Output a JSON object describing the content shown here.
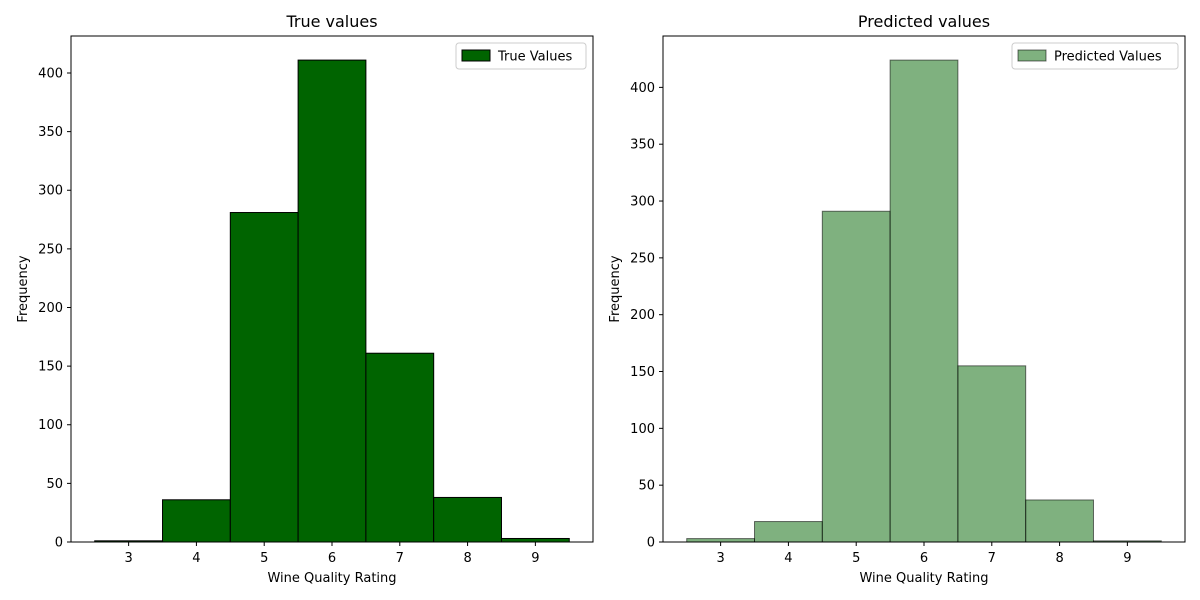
{
  "chart_data": [
    {
      "type": "bar",
      "title": "True values",
      "xlabel": "Wine Quality Rating",
      "ylabel": "Frequency",
      "categories": [
        "3",
        "4",
        "5",
        "6",
        "7",
        "8",
        "9"
      ],
      "bins": [
        [
          2.5,
          3.5
        ],
        [
          3.5,
          4.5
        ],
        [
          4.5,
          5.5
        ],
        [
          5.5,
          6.5
        ],
        [
          6.5,
          7.5
        ],
        [
          7.5,
          8.5
        ],
        [
          8.5,
          9.5
        ]
      ],
      "series": [
        {
          "name": "True Values",
          "values": [
            1,
            36,
            281,
            411,
            161,
            38,
            3
          ],
          "color": "#006400",
          "opacity": 1.0
        }
      ],
      "xticks": [
        3,
        4,
        5,
        6,
        7,
        8,
        9
      ],
      "yticks": [
        0,
        50,
        100,
        150,
        200,
        250,
        300,
        350,
        400
      ],
      "xlim": [
        2.15,
        9.85
      ],
      "ylim": [
        0,
        431.55
      ],
      "legend": "top-right",
      "grid": false
    },
    {
      "type": "bar",
      "title": "Predicted values",
      "xlabel": "Wine Quality Rating",
      "ylabel": "Frequency",
      "categories": [
        "3",
        "4",
        "5",
        "6",
        "7",
        "8",
        "9"
      ],
      "bins": [
        [
          2.5,
          3.5
        ],
        [
          3.5,
          4.5
        ],
        [
          4.5,
          5.5
        ],
        [
          5.5,
          6.5
        ],
        [
          6.5,
          7.5
        ],
        [
          7.5,
          8.5
        ],
        [
          8.5,
          9.5
        ]
      ],
      "series": [
        {
          "name": "Predicted Values",
          "values": [
            3,
            18,
            291,
            424,
            155,
            37,
            1
          ],
          "color": "#006400",
          "opacity": 0.5
        }
      ],
      "xticks": [
        3,
        4,
        5,
        6,
        7,
        8,
        9
      ],
      "yticks": [
        0,
        50,
        100,
        150,
        200,
        250,
        300,
        350,
        400
      ],
      "xlim": [
        2.15,
        9.85
      ],
      "ylim": [
        0,
        445.2
      ],
      "legend": "top-right",
      "grid": false
    }
  ]
}
